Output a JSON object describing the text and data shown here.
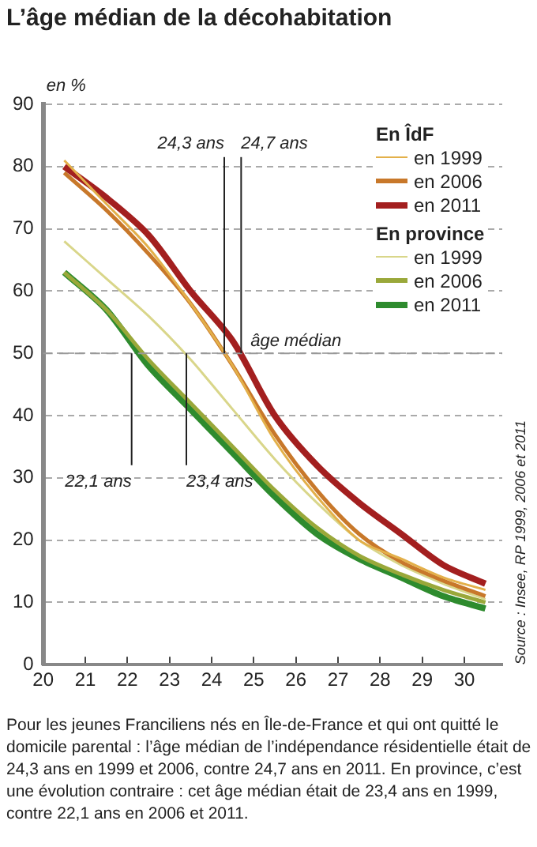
{
  "chart_data": {
    "type": "line",
    "title": "L’âge médian de la décohabitation",
    "ylabel": "en %",
    "x": [
      20.5,
      21.5,
      22.5,
      23.5,
      24.5,
      25.5,
      26.5,
      27.5,
      28.5,
      29.5,
      30.5
    ],
    "xlim": [
      20,
      30.9
    ],
    "xticks": [
      20,
      21,
      22,
      23,
      24,
      25,
      26,
      27,
      28,
      29,
      30
    ],
    "ylim": [
      0,
      90
    ],
    "yticks": [
      0,
      10,
      20,
      30,
      40,
      50,
      60,
      70,
      80,
      90
    ],
    "grid": "y",
    "ref_lines": [
      {
        "axis": "y",
        "value": 50,
        "label": "âge médian",
        "line_style": "dashed"
      }
    ],
    "legend": "top right",
    "line_style": "solid",
    "marker": "none",
    "series": [
      {
        "name": "en 1999",
        "color": "#e3b04a",
        "values": [
          81,
          74,
          67,
          58,
          48,
          36,
          27,
          20,
          17,
          14,
          12
        ]
      },
      {
        "name": "en 2006",
        "color": "#c8782a",
        "values": [
          79,
          73,
          66,
          58,
          48,
          37,
          28,
          21,
          16.5,
          13.5,
          11
        ]
      },
      {
        "name": "en 2011",
        "color": "#a31f1f",
        "values": [
          80,
          75,
          69,
          60,
          52,
          40,
          32,
          26,
          21,
          16,
          13
        ]
      },
      {
        "name": "en 1999",
        "color": "#d9d68a",
        "values": [
          68,
          62,
          56,
          49,
          41,
          33,
          26,
          20,
          16,
          13,
          10.5
        ]
      },
      {
        "name": "en 2006",
        "color": "#9aa83a",
        "values": [
          63,
          57,
          49,
          42,
          35,
          28,
          22,
          17.5,
          14.5,
          12,
          10
        ]
      },
      {
        "name": "en 2011",
        "color": "#2e8b2e",
        "values": [
          63,
          57,
          48,
          41,
          34,
          27,
          21,
          17,
          14,
          11,
          9
        ]
      }
    ],
    "annotations": [
      "En ÎdF",
      "En province",
      {
        "text": "24,3 ans",
        "x": 24.3,
        "y": 50
      },
      {
        "text": "24,7 ans",
        "x": 24.7,
        "y": 50
      },
      {
        "text": "22,1 ans",
        "x": 22.1,
        "y": 50
      },
      {
        "text": "23,4 ans",
        "x": 23.4,
        "y": 50
      },
      "Source : Insee, RP 1999, 2006 et 2011",
      "Pour les jeunes Franciliens nés en Île-de-France et qui ont quitté le domicile parental : l’âge médian de l’indépendance résidentielle était de 24,3 ans en 1999 et 2006, contre 24,7 ans en 2011. En province, c’est une évolution contraire : cet âge médian était de 23,4 ans en 1999, contre 22,1 ans en 2006 et 2011."
    ]
  }
}
